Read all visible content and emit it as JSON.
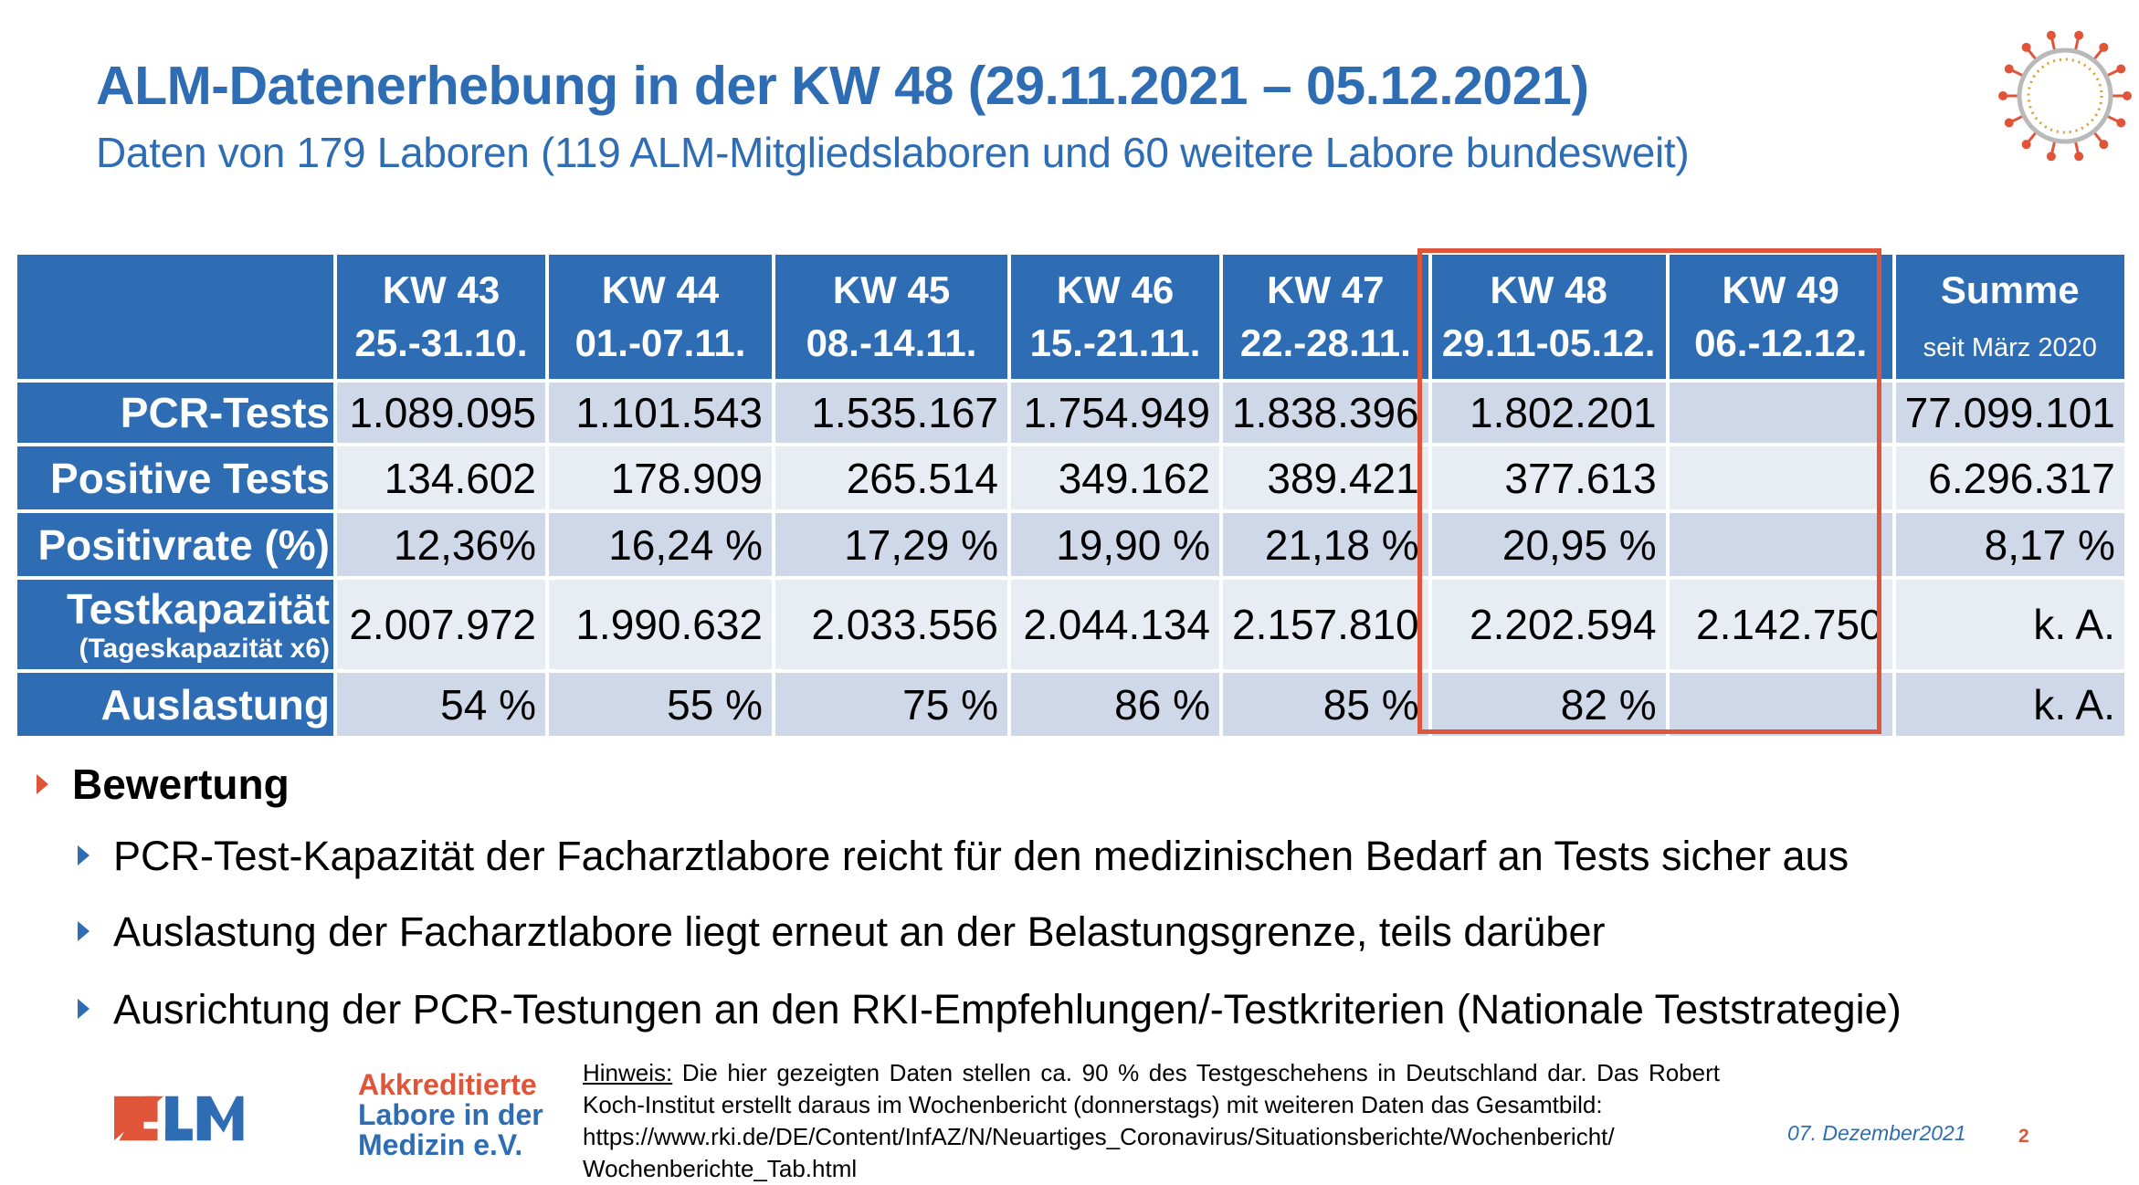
{
  "title": "ALM-Datenerhebung in der KW 48 (29.11.2021 – 05.12.2021)",
  "subtitle": "Daten von 179 Laboren (119 ALM-Mitgliedslaboren und 60 weitere Labore bundesweit)",
  "table": {
    "columns": [
      {
        "kw": "KW 43",
        "range": "25.-31.10."
      },
      {
        "kw": "KW 44",
        "range": "01.-07.11."
      },
      {
        "kw": "KW 45",
        "range": "08.-14.11."
      },
      {
        "kw": "KW 46",
        "range": "15.-21.11."
      },
      {
        "kw": "KW 47",
        "range": "22.-28.11."
      },
      {
        "kw": "KW 48",
        "range": "29.11-05.12."
      },
      {
        "kw": "KW 49",
        "range": "06.-12.12."
      }
    ],
    "sum_header": "Summe",
    "sum_sub": "seit März 2020",
    "rows": [
      {
        "label": "PCR-Tests",
        "values": [
          "1.089.095",
          "1.101.543",
          "1.535.167",
          "1.754.949",
          "1.838.396",
          "1.802.201",
          ""
        ],
        "sum": "77.099.101"
      },
      {
        "label": "Positive Tests",
        "values": [
          "134.602",
          "178.909",
          "265.514",
          "349.162",
          "389.421",
          "377.613",
          ""
        ],
        "sum": "6.296.317"
      },
      {
        "label": "Positivrate (%)",
        "values": [
          "12,36%",
          "16,24 %",
          "17,29 %",
          "19,90 %",
          "21,18 %",
          "20,95 %",
          ""
        ],
        "sum": "8,17 %"
      },
      {
        "label": "Testkapazität",
        "sublabel": "(Tageskapazität x6)",
        "values": [
          "2.007.972",
          "1.990.632",
          "2.033.556",
          "2.044.134",
          "2.157.810",
          "2.202.594",
          "2.142.750"
        ],
        "sum": "k. A."
      },
      {
        "label": "Auslastung",
        "values": [
          "54 %",
          "55 %",
          "75 %",
          "86 %",
          "85 %",
          "82 %",
          ""
        ],
        "sum": "k. A."
      }
    ]
  },
  "assessment": {
    "heading": "Bewertung",
    "points": [
      "PCR-Test-Kapazität der Facharztlabore reicht für den medizinischen Bedarf an Tests sicher aus",
      "Auslastung der Facharztlabore liegt erneut an der Belastungsgrenze, teils darüber",
      "Ausrichtung der PCR-Testungen an den RKI-Empfehlungen/-Testkriterien (Nationale Teststrategie)"
    ]
  },
  "logo": {
    "letters": "ALM",
    "line1": "Akkreditierte",
    "line2": "Labore in der",
    "line3": "Medizin e.V."
  },
  "hint": {
    "label": "Hinweis:",
    "text": "Die hier gezeigten Daten stellen ca. 90 % des Testgeschehens in Deutschland dar. Das Robert Koch-Institut erstellt daraus im Wochenbericht (donnerstags) mit weiteren Daten das Gesamtbild:",
    "url1": "https://www.rki.de/DE/Content/InfAZ/N/Neuartiges_Coronavirus/Situationsberichte/Wochenbericht/",
    "url2": "Wochenberichte_Tab.html"
  },
  "footer": {
    "date": "07. Dezember2021",
    "page": "2"
  },
  "colors": {
    "brand_blue": "#2e6db4",
    "accent_orange": "#e0553a",
    "row_dark": "#cfd8e8",
    "row_light": "#e8ecf3"
  }
}
